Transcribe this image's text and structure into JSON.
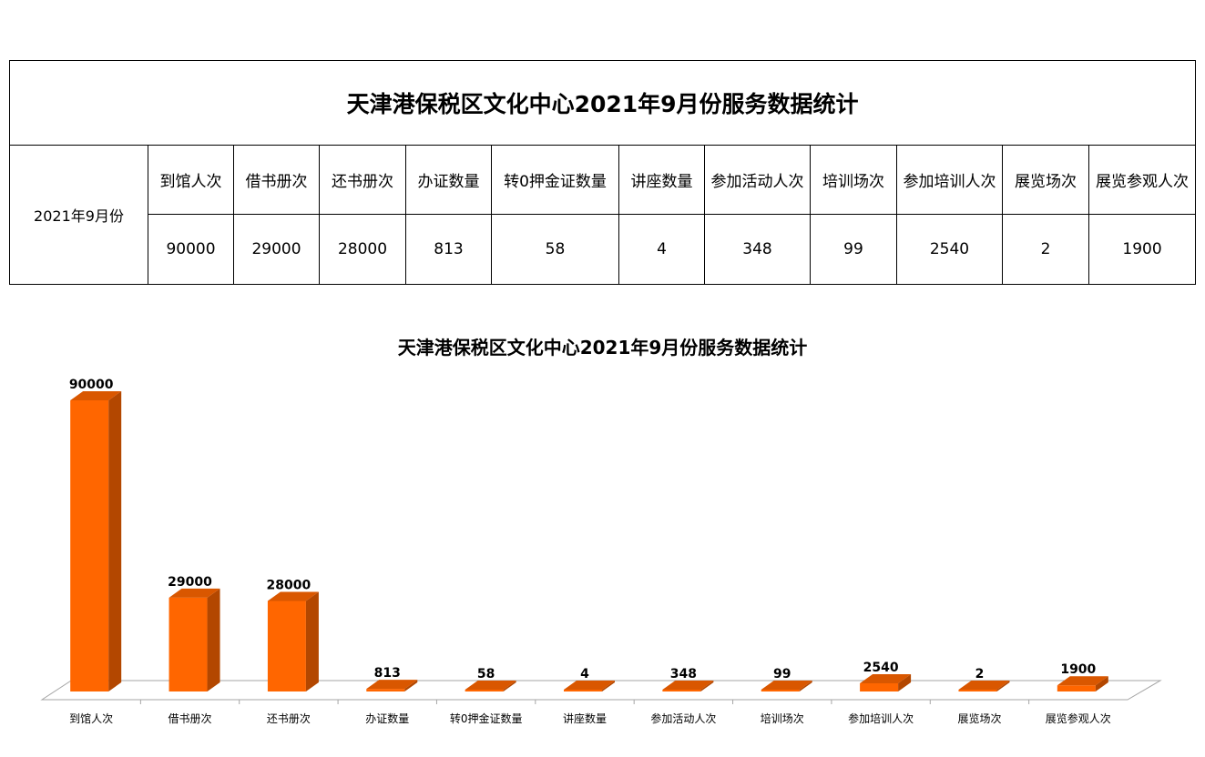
{
  "table": {
    "title": "天津港保税区文化中心2021年9月份服务数据统计",
    "period": "2021年9月份",
    "headers": [
      "到馆人次",
      "借书册次",
      "还书册次",
      "办证数量",
      "转0押金证数量",
      "讲座数量",
      "参加活动人次",
      "培训场次",
      "参加培训人次",
      "展览场次",
      "展览参观人次"
    ],
    "values": [
      "90000",
      "29000",
      "28000",
      "813",
      "58",
      "4",
      "348",
      "99",
      "2540",
      "2",
      "1900"
    ]
  },
  "chart_data": {
    "type": "bar",
    "title": "天津港保税区文化中心2021年9月份服务数据统计",
    "categories": [
      "到馆人次",
      "借书册次",
      "还书册次",
      "办证数量",
      "转0押金证数量",
      "讲座数量",
      "参加活动人次",
      "培训场次",
      "参加培训人次",
      "展览场次",
      "展览参观人次"
    ],
    "values": [
      90000,
      29000,
      28000,
      813,
      58,
      4,
      348,
      99,
      2540,
      2,
      1900
    ],
    "xlabel": "",
    "ylabel": "",
    "ylim": [
      0,
      90000
    ],
    "grid": false,
    "legend": "none",
    "bar_color": "#ff6600",
    "bar_side_color": "#b34700",
    "bar_top_color": "#d95700"
  }
}
